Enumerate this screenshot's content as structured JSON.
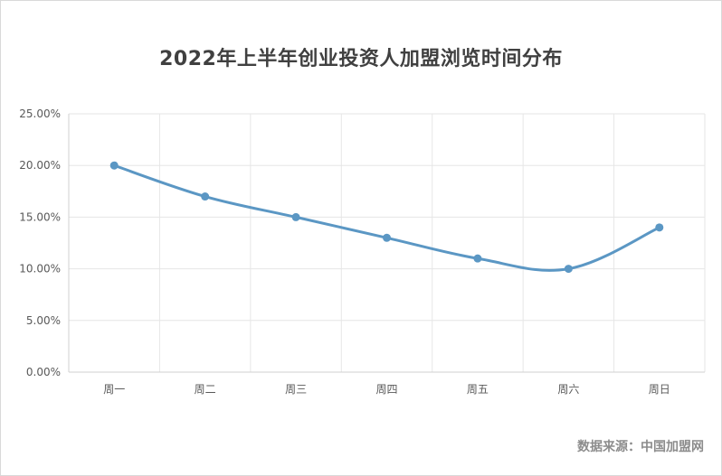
{
  "chart_data": {
    "type": "line",
    "title": "2022年上半年创业投资人加盟浏览时间分布",
    "categories": [
      "周一",
      "周二",
      "周三",
      "周四",
      "周五",
      "周六",
      "周日"
    ],
    "series": [
      {
        "values": [
          0.2,
          0.17,
          0.15,
          0.13,
          0.11,
          0.1,
          0.14
        ]
      }
    ],
    "ylim": [
      0,
      0.25
    ],
    "yticks": [
      "0.00%",
      "5.00%",
      "10.00%",
      "15.00%",
      "20.00%",
      "25.00%"
    ],
    "grid": true,
    "smooth": true,
    "line_color": "#5b97c4",
    "grid_color": "#e6e6e6"
  },
  "footer": {
    "source": "数据来源：中国加盟网"
  }
}
